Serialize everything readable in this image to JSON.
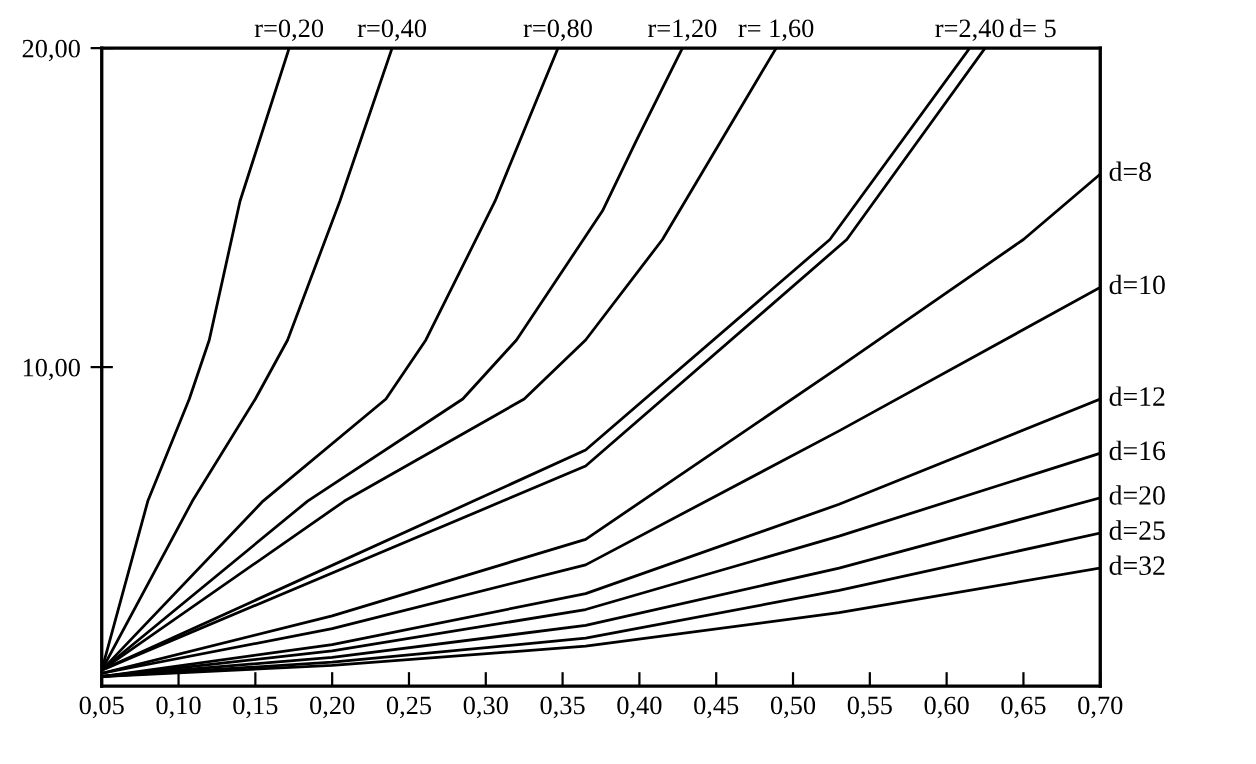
{
  "chart_data": {
    "type": "line",
    "xlim": [
      0.05,
      0.7
    ],
    "ylim": [
      0,
      20
    ],
    "xticks": [
      {
        "value": 0.05,
        "label": "0,05"
      },
      {
        "value": 0.1,
        "label": "0,10"
      },
      {
        "value": 0.15,
        "label": "0,15"
      },
      {
        "value": 0.2,
        "label": "0,20"
      },
      {
        "value": 0.25,
        "label": "0,25"
      },
      {
        "value": 0.3,
        "label": "0,30"
      },
      {
        "value": 0.35,
        "label": "0,35"
      },
      {
        "value": 0.4,
        "label": "0,40"
      },
      {
        "value": 0.45,
        "label": "0,45"
      },
      {
        "value": 0.5,
        "label": "0,50"
      },
      {
        "value": 0.55,
        "label": "0,55"
      },
      {
        "value": 0.6,
        "label": "0,60"
      },
      {
        "value": 0.65,
        "label": "0,65"
      },
      {
        "value": 0.7,
        "label": "0,70"
      }
    ],
    "yticks": [
      {
        "value": 10,
        "label": "10,00"
      },
      {
        "value": 20,
        "label": "20,00"
      }
    ],
    "grid": false,
    "legend": false,
    "marker": "none",
    "line_style": "solid",
    "series": [
      {
        "name": "r=0,20",
        "color": "#000000",
        "x": [
          0.05,
          0.08,
          0.107,
          0.12,
          0.14,
          0.172
        ],
        "values": [
          0.5,
          5.8,
          9.0,
          10.85,
          15.2,
          20
        ]
      },
      {
        "name": "r=0,40",
        "color": "#000000",
        "x": [
          0.05,
          0.109,
          0.15,
          0.171,
          0.205,
          0.239
        ],
        "values": [
          0.5,
          5.8,
          9.0,
          10.85,
          15.2,
          20
        ]
      },
      {
        "name": "r=0,80",
        "color": "#000000",
        "x": [
          0.05,
          0.155,
          0.235,
          0.261,
          0.306,
          0.347
        ],
        "values": [
          0.5,
          5.8,
          9.0,
          10.85,
          15.2,
          20
        ]
      },
      {
        "name": "r=1,20",
        "color": "#000000",
        "x": [
          0.05,
          0.184,
          0.285,
          0.32,
          0.376,
          0.398,
          0.428
        ],
        "values": [
          0.5,
          5.8,
          9.0,
          10.85,
          14.9,
          17.1,
          20
        ]
      },
      {
        "name": "r= 1,60",
        "color": "#000000",
        "x": [
          0.05,
          0.208,
          0.325,
          0.365,
          0.415,
          0.489
        ],
        "values": [
          0.5,
          5.8,
          9.0,
          10.85,
          14.0,
          20
        ]
      },
      {
        "name": "r=2,40",
        "color": "#000000",
        "x": [
          0.05,
          0.292,
          0.365,
          0.524,
          0.615
        ],
        "values": [
          0.5,
          5.8,
          7.4,
          14.0,
          20
        ]
      },
      {
        "name": "d= 5",
        "color": "#000000",
        "x": [
          0.05,
          0.311,
          0.365,
          0.535,
          0.625
        ],
        "values": [
          0.5,
          5.8,
          6.9,
          14.0,
          20
        ]
      },
      {
        "name": "d=8",
        "color": "#000000",
        "x": [
          0.05,
          0.2,
          0.365,
          0.53,
          0.65,
          0.7
        ],
        "values": [
          0.4,
          2.2,
          4.6,
          10.0,
          14.0,
          16.05
        ]
      },
      {
        "name": "d=10",
        "color": "#000000",
        "x": [
          0.05,
          0.2,
          0.365,
          0.53,
          0.7
        ],
        "values": [
          0.4,
          1.8,
          3.8,
          8.0,
          12.5
        ]
      },
      {
        "name": "d=12",
        "color": "#000000",
        "x": [
          0.05,
          0.2,
          0.365,
          0.53,
          0.7
        ],
        "values": [
          0.3,
          1.3,
          2.9,
          5.7,
          9.0
        ]
      },
      {
        "name": "d=16",
        "color": "#000000",
        "x": [
          0.05,
          0.2,
          0.365,
          0.53,
          0.7
        ],
        "values": [
          0.3,
          1.1,
          2.4,
          4.7,
          7.3
        ]
      },
      {
        "name": "d=20",
        "color": "#000000",
        "x": [
          0.05,
          0.2,
          0.365,
          0.53,
          0.7
        ],
        "values": [
          0.3,
          0.9,
          1.9,
          3.7,
          5.9
        ]
      },
      {
        "name": "d=25",
        "color": "#000000",
        "x": [
          0.05,
          0.2,
          0.365,
          0.53,
          0.7
        ],
        "values": [
          0.3,
          0.75,
          1.5,
          3.0,
          4.8
        ]
      },
      {
        "name": "d=32",
        "color": "#000000",
        "x": [
          0.05,
          0.2,
          0.365,
          0.53,
          0.7
        ],
        "values": [
          0.3,
          0.65,
          1.25,
          2.3,
          3.7
        ]
      }
    ]
  }
}
